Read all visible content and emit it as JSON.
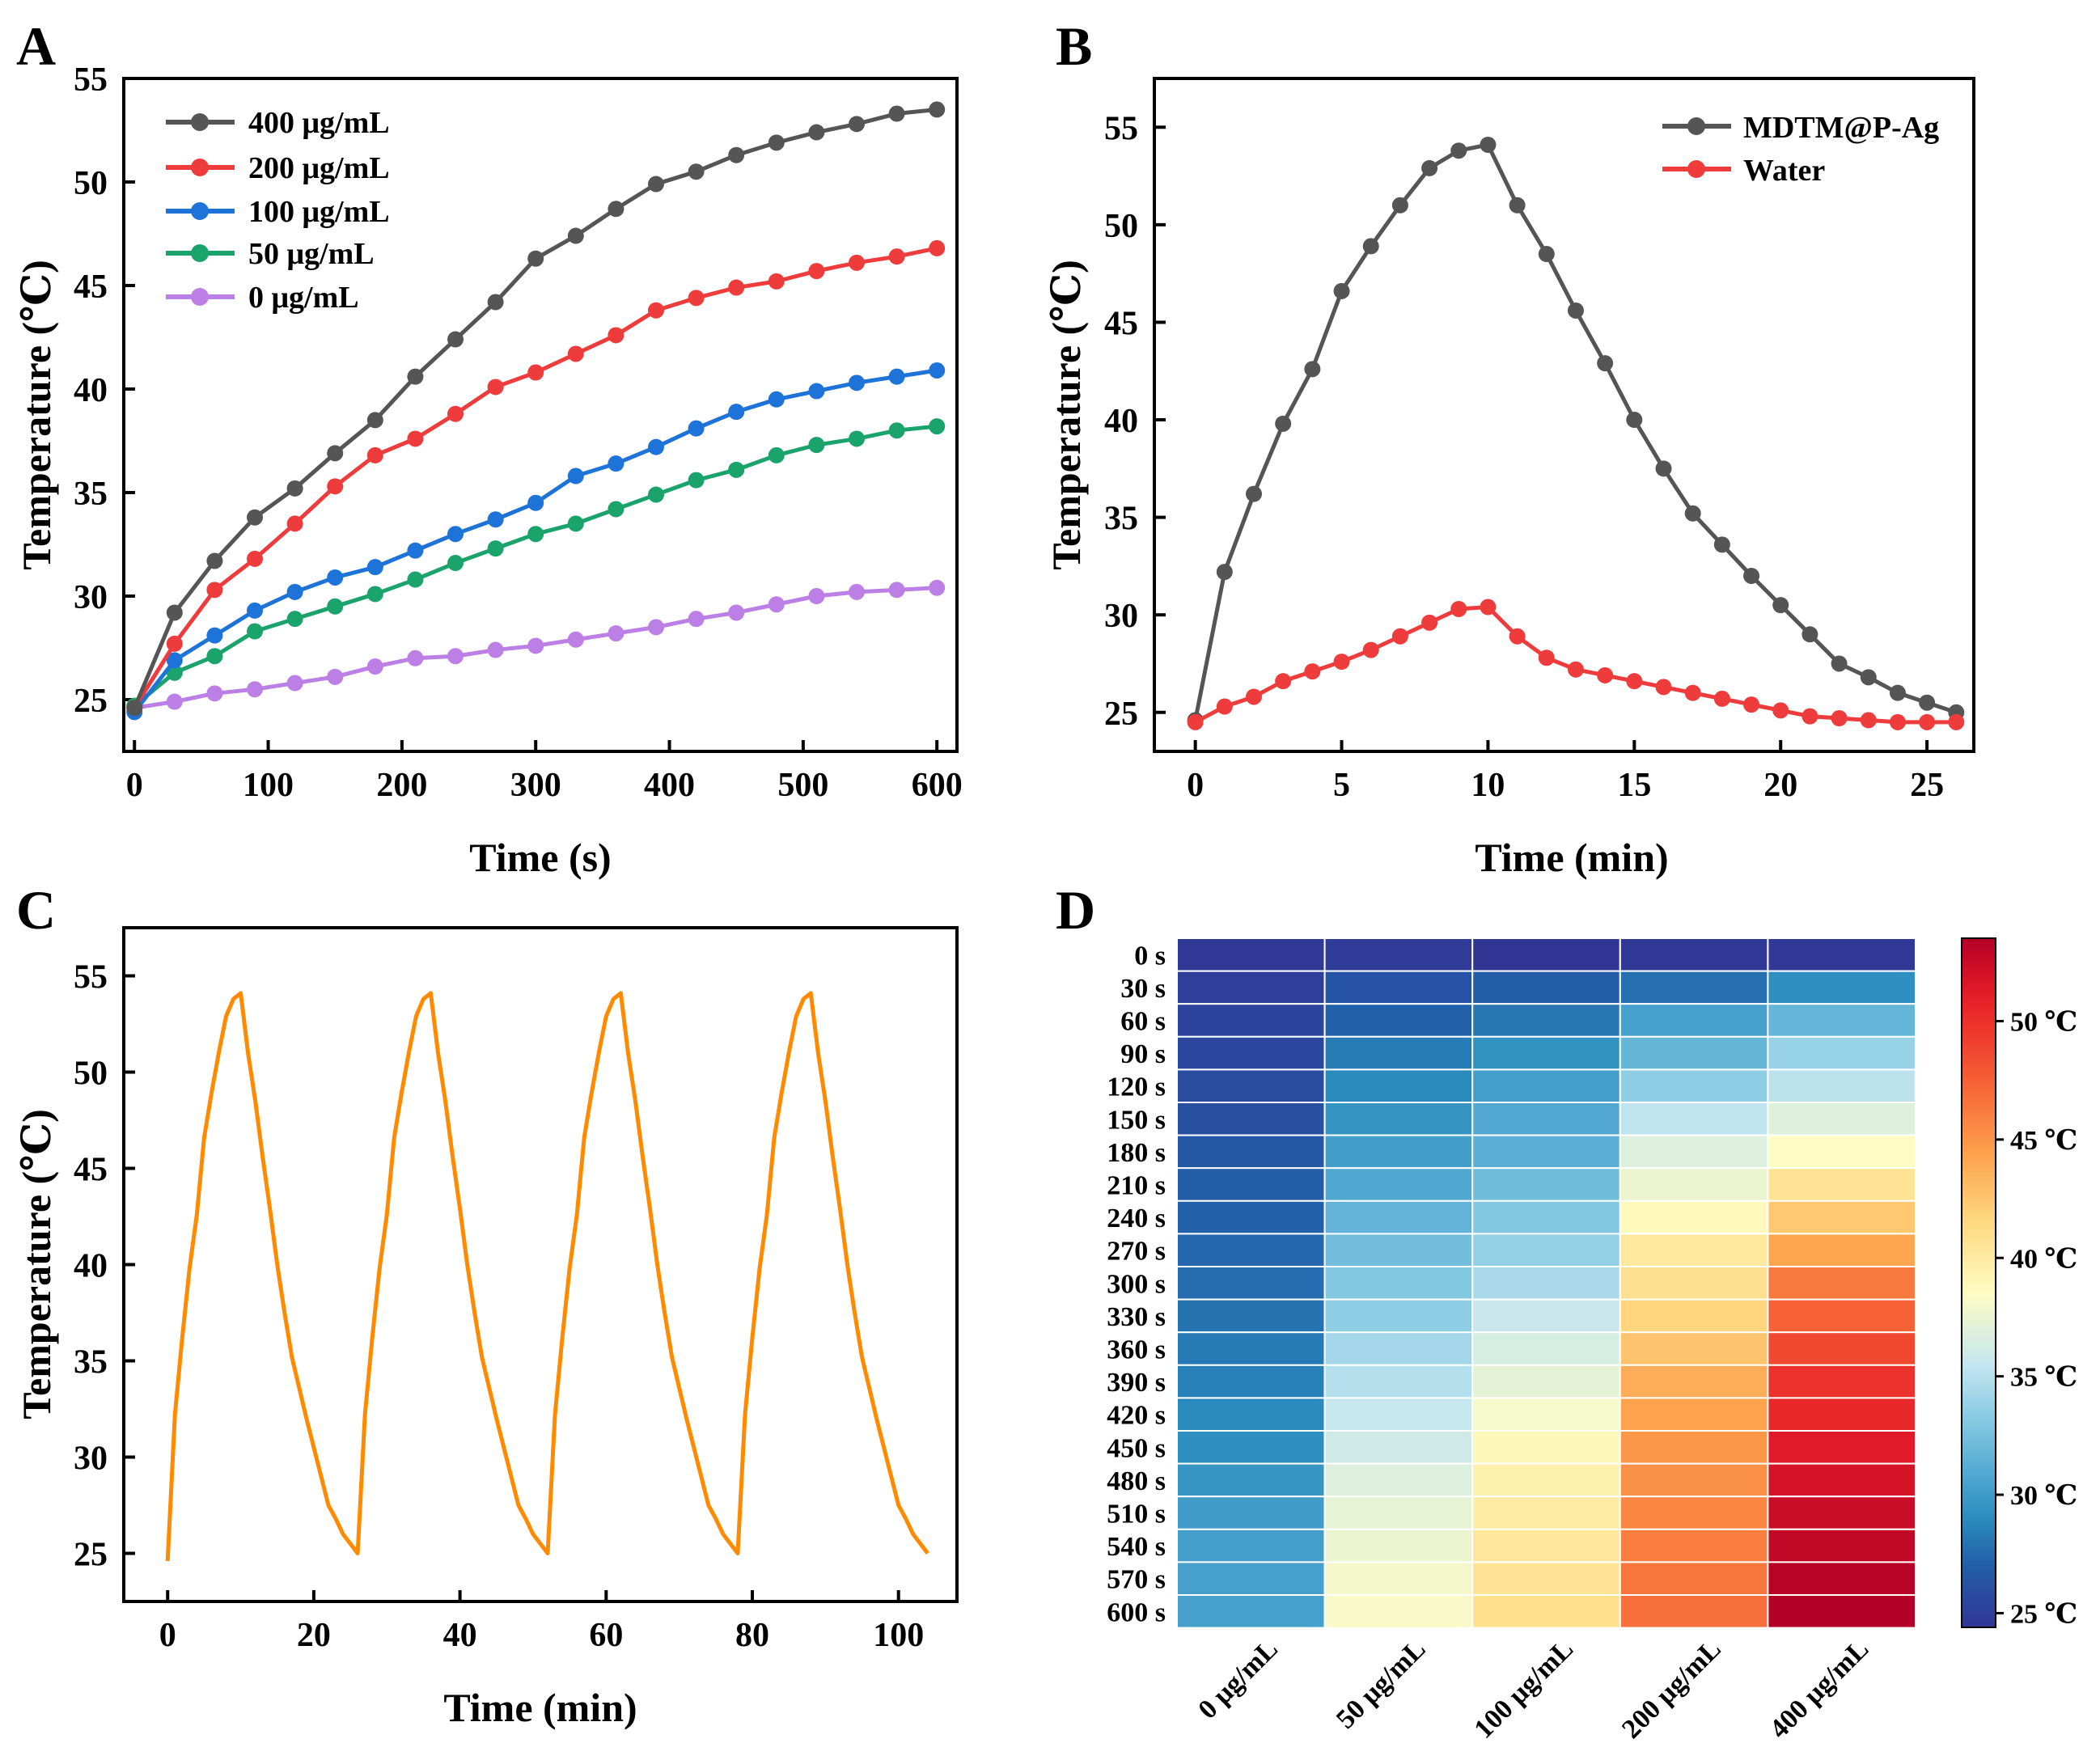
{
  "colors": {
    "400": "#555555",
    "200": "#ee3b3b",
    "100": "#1e73d8",
    "50": "#1aa36a",
    "0": "#bb7fe6",
    "composite": "#555555",
    "water": "#ee3b3b",
    "cycles": "#ff8a00"
  },
  "chart_data": [
    {
      "panel": "A",
      "type": "line",
      "xlabel": "Time (s)",
      "ylabel": "Temperature (℃)",
      "xlim": [
        -8,
        615
      ],
      "ylim": [
        22.5,
        55
      ],
      "xticks": [
        0,
        100,
        200,
        300,
        400,
        500,
        600
      ],
      "yticks": [
        25,
        30,
        35,
        40,
        45,
        50,
        55
      ],
      "x": [
        0,
        30,
        60,
        90,
        120,
        150,
        180,
        210,
        240,
        270,
        300,
        330,
        360,
        390,
        420,
        450,
        480,
        510,
        540,
        570,
        600
      ],
      "series": [
        {
          "key": "400",
          "name": "400 μg/mL",
          "values": [
            24.6,
            29.2,
            31.7,
            33.8,
            35.2,
            36.9,
            38.5,
            40.6,
            42.4,
            44.2,
            46.3,
            47.4,
            48.7,
            49.9,
            50.5,
            51.3,
            51.9,
            52.4,
            52.8,
            53.3,
            53.5
          ]
        },
        {
          "key": "200",
          "name": "200 μg/mL",
          "values": [
            24.6,
            27.7,
            30.3,
            31.8,
            33.5,
            35.3,
            36.8,
            37.6,
            38.8,
            40.1,
            40.8,
            41.7,
            42.6,
            43.8,
            44.4,
            44.9,
            45.2,
            45.7,
            46.1,
            46.4,
            46.8
          ]
        },
        {
          "key": "100",
          "name": "100 μg/mL",
          "values": [
            24.4,
            26.9,
            28.1,
            29.3,
            30.2,
            30.9,
            31.4,
            32.2,
            33.0,
            33.7,
            34.5,
            35.8,
            36.4,
            37.2,
            38.1,
            38.9,
            39.5,
            39.9,
            40.3,
            40.6,
            40.9
          ]
        },
        {
          "key": "50",
          "name": "50 μg/mL",
          "values": [
            24.7,
            26.3,
            27.1,
            28.3,
            28.9,
            29.5,
            30.1,
            30.8,
            31.6,
            32.3,
            33.0,
            33.5,
            34.2,
            34.9,
            35.6,
            36.1,
            36.8,
            37.3,
            37.6,
            38.0,
            38.2
          ]
        },
        {
          "key": "0",
          "name": "0 μg/mL",
          "values": [
            24.6,
            24.9,
            25.3,
            25.5,
            25.8,
            26.1,
            26.6,
            27.0,
            27.1,
            27.4,
            27.6,
            27.9,
            28.2,
            28.5,
            28.9,
            29.2,
            29.6,
            30.0,
            30.2,
            30.3,
            30.4
          ]
        }
      ]
    },
    {
      "panel": "B",
      "type": "line",
      "xlabel": "Time (min)",
      "ylabel": "Temperature (℃)",
      "xlim": [
        -1.4,
        26.6
      ],
      "ylim": [
        23,
        57.5
      ],
      "xticks": [
        0,
        5,
        10,
        15,
        20,
        25
      ],
      "yticks": [
        25,
        30,
        35,
        40,
        45,
        50,
        55
      ],
      "x": [
        0,
        1,
        2,
        3,
        4,
        5,
        6,
        7,
        8,
        9,
        10,
        11,
        12,
        13,
        14,
        15,
        16,
        17,
        18,
        19,
        20,
        21,
        22,
        23,
        24,
        25,
        26
      ],
      "series": [
        {
          "key": "composite",
          "name": "MDTM@P-Ag",
          "values": [
            24.6,
            32.2,
            36.2,
            39.8,
            42.6,
            46.6,
            48.9,
            51.0,
            52.9,
            53.8,
            54.1,
            51.0,
            48.5,
            45.6,
            42.9,
            40.0,
            37.5,
            35.2,
            33.6,
            32.0,
            30.5,
            29.0,
            27.5,
            26.8,
            26.0,
            25.5,
            25.0
          ]
        },
        {
          "key": "water",
          "name": "Water",
          "values": [
            24.5,
            25.3,
            25.8,
            26.6,
            27.1,
            27.6,
            28.2,
            28.9,
            29.6,
            30.3,
            30.4,
            28.9,
            27.8,
            27.2,
            26.9,
            26.6,
            26.3,
            26.0,
            25.7,
            25.4,
            25.1,
            24.8,
            24.7,
            24.6,
            24.5,
            24.5,
            24.5
          ]
        }
      ]
    },
    {
      "panel": "C",
      "type": "line",
      "xlabel": "Time (min)",
      "ylabel": "Temperature (℃)",
      "xlim": [
        -6,
        108
      ],
      "ylim": [
        22.5,
        57.5
      ],
      "xticks": [
        0,
        20,
        40,
        60,
        80,
        100
      ],
      "yticks": [
        25,
        30,
        35,
        40,
        45,
        50,
        55
      ],
      "cycle_values": [
        24.6,
        32.2,
        36.2,
        39.8,
        42.6,
        46.6,
        48.9,
        51.0,
        52.9,
        53.8,
        54.1,
        51.0,
        48.5,
        45.6,
        42.9,
        40.0,
        37.5,
        35.2,
        33.6,
        32.0,
        30.5,
        29.0,
        27.5,
        26.8,
        26.0,
        25.5,
        25.0
      ],
      "cycles": 4,
      "minutes_per_cycle": 26
    },
    {
      "panel": "D",
      "type": "heatmap",
      "rows": [
        "0 s",
        "30 s",
        "60 s",
        "90 s",
        "120 s",
        "150 s",
        "180 s",
        "210 s",
        "240 s",
        "270 s",
        "300 s",
        "330 s",
        "360 s",
        "390 s",
        "420 s",
        "450 s",
        "480 s",
        "510 s",
        "540 s",
        "570 s",
        "600 s"
      ],
      "columns": [
        "0 μg/mL",
        "50 μg/mL",
        "100 μg/mL",
        "200 μg/mL",
        "400 μg/mL"
      ],
      "colorbar": {
        "min": 24.4,
        "max": 53.5,
        "ticks": [
          25,
          30,
          35,
          40,
          45,
          50
        ],
        "tick_labels": [
          "25 ℃",
          "30 ℃",
          "35 ℃",
          "40 ℃",
          "45 ℃",
          "50 ℃"
        ]
      }
    }
  ],
  "panels": {
    "A": {
      "letter": "A"
    },
    "B": {
      "letter": "B"
    },
    "C": {
      "letter": "C"
    },
    "D": {
      "letter": "D"
    }
  }
}
